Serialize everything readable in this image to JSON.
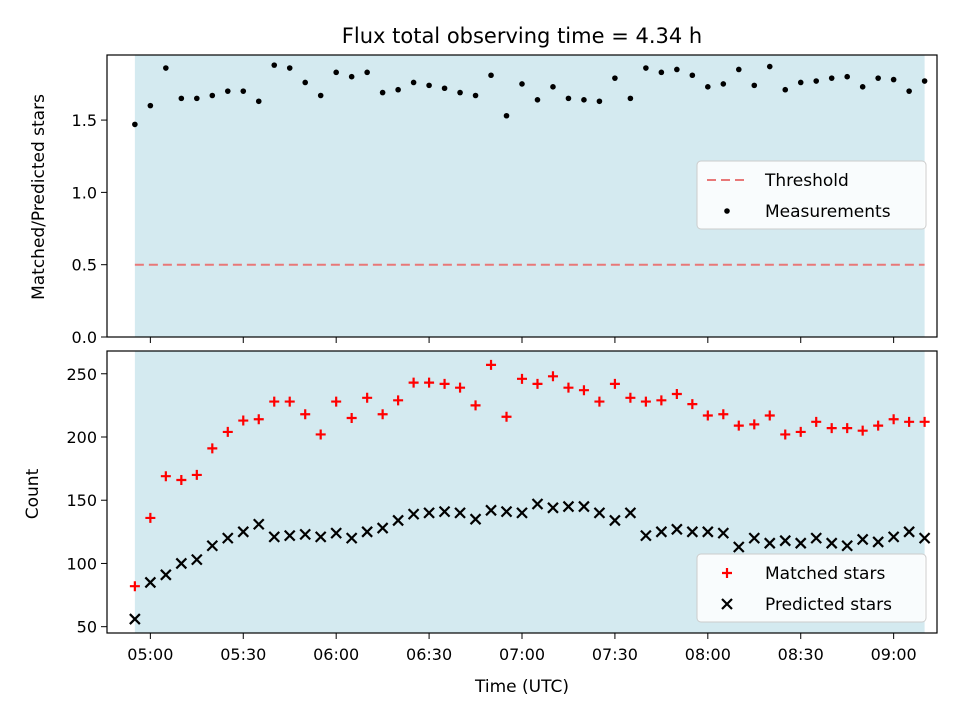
{
  "title": "Flux total observing time = 4.34 h",
  "colors": {
    "shade": "#d4eaf0",
    "threshold": "#e87878",
    "measurement": "#000000",
    "matched": "#ff0000",
    "predicted": "#000000"
  },
  "chart_data": [
    {
      "type": "scatter",
      "ylabel": "Matched/Predicted stars",
      "xlim": [
        "04:46",
        "09:14"
      ],
      "ylim": [
        0,
        1.95
      ],
      "yticks": [
        0.0,
        0.5,
        1.0,
        1.5
      ],
      "ytick_labels": [
        "0.0",
        "0.5",
        "1.0",
        "1.5"
      ],
      "shaded_span": [
        "04:55",
        "09:10"
      ],
      "legend": {
        "location": "center-right",
        "entries": [
          "Threshold",
          "Measurements"
        ]
      },
      "threshold": {
        "name": "Threshold",
        "value": 0.5,
        "style": "dashed"
      },
      "series": [
        {
          "name": "Measurements",
          "x": [
            "04:55",
            "05:00",
            "05:05",
            "05:10",
            "05:15",
            "05:20",
            "05:25",
            "05:30",
            "05:35",
            "05:40",
            "05:45",
            "05:50",
            "05:55",
            "06:00",
            "06:05",
            "06:10",
            "06:15",
            "06:20",
            "06:25",
            "06:30",
            "06:35",
            "06:40",
            "06:45",
            "06:50",
            "06:55",
            "07:00",
            "07:05",
            "07:10",
            "07:15",
            "07:20",
            "07:25",
            "07:30",
            "07:35",
            "07:40",
            "07:45",
            "07:50",
            "07:55",
            "08:00",
            "08:05",
            "08:10",
            "08:15",
            "08:20",
            "08:25",
            "08:30",
            "08:35",
            "08:40",
            "08:45",
            "08:50",
            "08:55",
            "09:00",
            "09:05",
            "09:10"
          ],
          "y": [
            1.47,
            1.6,
            1.86,
            1.65,
            1.65,
            1.67,
            1.7,
            1.7,
            1.63,
            1.88,
            1.86,
            1.76,
            1.67,
            1.83,
            1.8,
            1.83,
            1.69,
            1.71,
            1.76,
            1.74,
            1.72,
            1.69,
            1.67,
            1.81,
            1.53,
            1.75,
            1.64,
            1.73,
            1.65,
            1.64,
            1.63,
            1.79,
            1.65,
            1.86,
            1.83,
            1.85,
            1.81,
            1.73,
            1.75,
            1.85,
            1.74,
            1.87,
            1.71,
            1.76,
            1.77,
            1.79,
            1.8,
            1.73,
            1.79,
            1.78,
            1.7,
            1.77
          ]
        }
      ]
    },
    {
      "type": "scatter",
      "xlabel": "Time (UTC)",
      "ylabel": "Count",
      "xlim": [
        "04:46",
        "09:14"
      ],
      "ylim": [
        45,
        268
      ],
      "xticks": [
        "05:00",
        "05:30",
        "06:00",
        "06:30",
        "07:00",
        "07:30",
        "08:00",
        "08:30",
        "09:00"
      ],
      "yticks": [
        50,
        100,
        150,
        200,
        250
      ],
      "ytick_labels": [
        "50",
        "100",
        "150",
        "200",
        "250"
      ],
      "shaded_span": [
        "04:55",
        "09:10"
      ],
      "legend": {
        "location": "lower-right",
        "entries": [
          "Matched stars",
          "Predicted stars"
        ]
      },
      "series": [
        {
          "name": "Matched stars",
          "marker": "plus",
          "x": [
            "04:55",
            "05:00",
            "05:05",
            "05:10",
            "05:15",
            "05:20",
            "05:25",
            "05:30",
            "05:35",
            "05:40",
            "05:45",
            "05:50",
            "05:55",
            "06:00",
            "06:05",
            "06:10",
            "06:15",
            "06:20",
            "06:25",
            "06:30",
            "06:35",
            "06:40",
            "06:45",
            "06:50",
            "06:55",
            "07:00",
            "07:05",
            "07:10",
            "07:15",
            "07:20",
            "07:25",
            "07:30",
            "07:35",
            "07:40",
            "07:45",
            "07:50",
            "07:55",
            "08:00",
            "08:05",
            "08:10",
            "08:15",
            "08:20",
            "08:25",
            "08:30",
            "08:35",
            "08:40",
            "08:45",
            "08:50",
            "08:55",
            "09:00",
            "09:05",
            "09:10"
          ],
          "y": [
            82,
            136,
            169,
            166,
            170,
            191,
            204,
            213,
            214,
            228,
            228,
            218,
            202,
            228,
            215,
            231,
            218,
            229,
            243,
            243,
            242,
            239,
            225,
            257,
            216,
            246,
            242,
            248,
            239,
            237,
            228,
            242,
            231,
            228,
            229,
            234,
            226,
            217,
            218,
            209,
            210,
            217,
            202,
            204,
            212,
            207,
            207,
            205,
            209,
            214,
            212,
            212
          ]
        },
        {
          "name": "Predicted stars",
          "marker": "x",
          "x": [
            "04:55",
            "05:00",
            "05:05",
            "05:10",
            "05:15",
            "05:20",
            "05:25",
            "05:30",
            "05:35",
            "05:40",
            "05:45",
            "05:50",
            "05:55",
            "06:00",
            "06:05",
            "06:10",
            "06:15",
            "06:20",
            "06:25",
            "06:30",
            "06:35",
            "06:40",
            "06:45",
            "06:50",
            "06:55",
            "07:00",
            "07:05",
            "07:10",
            "07:15",
            "07:20",
            "07:25",
            "07:30",
            "07:35",
            "07:40",
            "07:45",
            "07:50",
            "07:55",
            "08:00",
            "08:05",
            "08:10",
            "08:15",
            "08:20",
            "08:25",
            "08:30",
            "08:35",
            "08:40",
            "08:45",
            "08:50",
            "08:55",
            "09:00",
            "09:05",
            "09:10"
          ],
          "y": [
            56,
            85,
            91,
            100,
            103,
            114,
            120,
            125,
            131,
            121,
            122,
            123,
            121,
            124,
            120,
            125,
            128,
            134,
            139,
            140,
            141,
            140,
            135,
            142,
            141,
            140,
            147,
            144,
            145,
            145,
            140,
            134,
            140,
            122,
            125,
            127,
            125,
            125,
            124,
            113,
            120,
            116,
            118,
            116,
            120,
            116,
            114,
            119,
            117,
            121,
            125,
            120
          ]
        }
      ]
    }
  ]
}
